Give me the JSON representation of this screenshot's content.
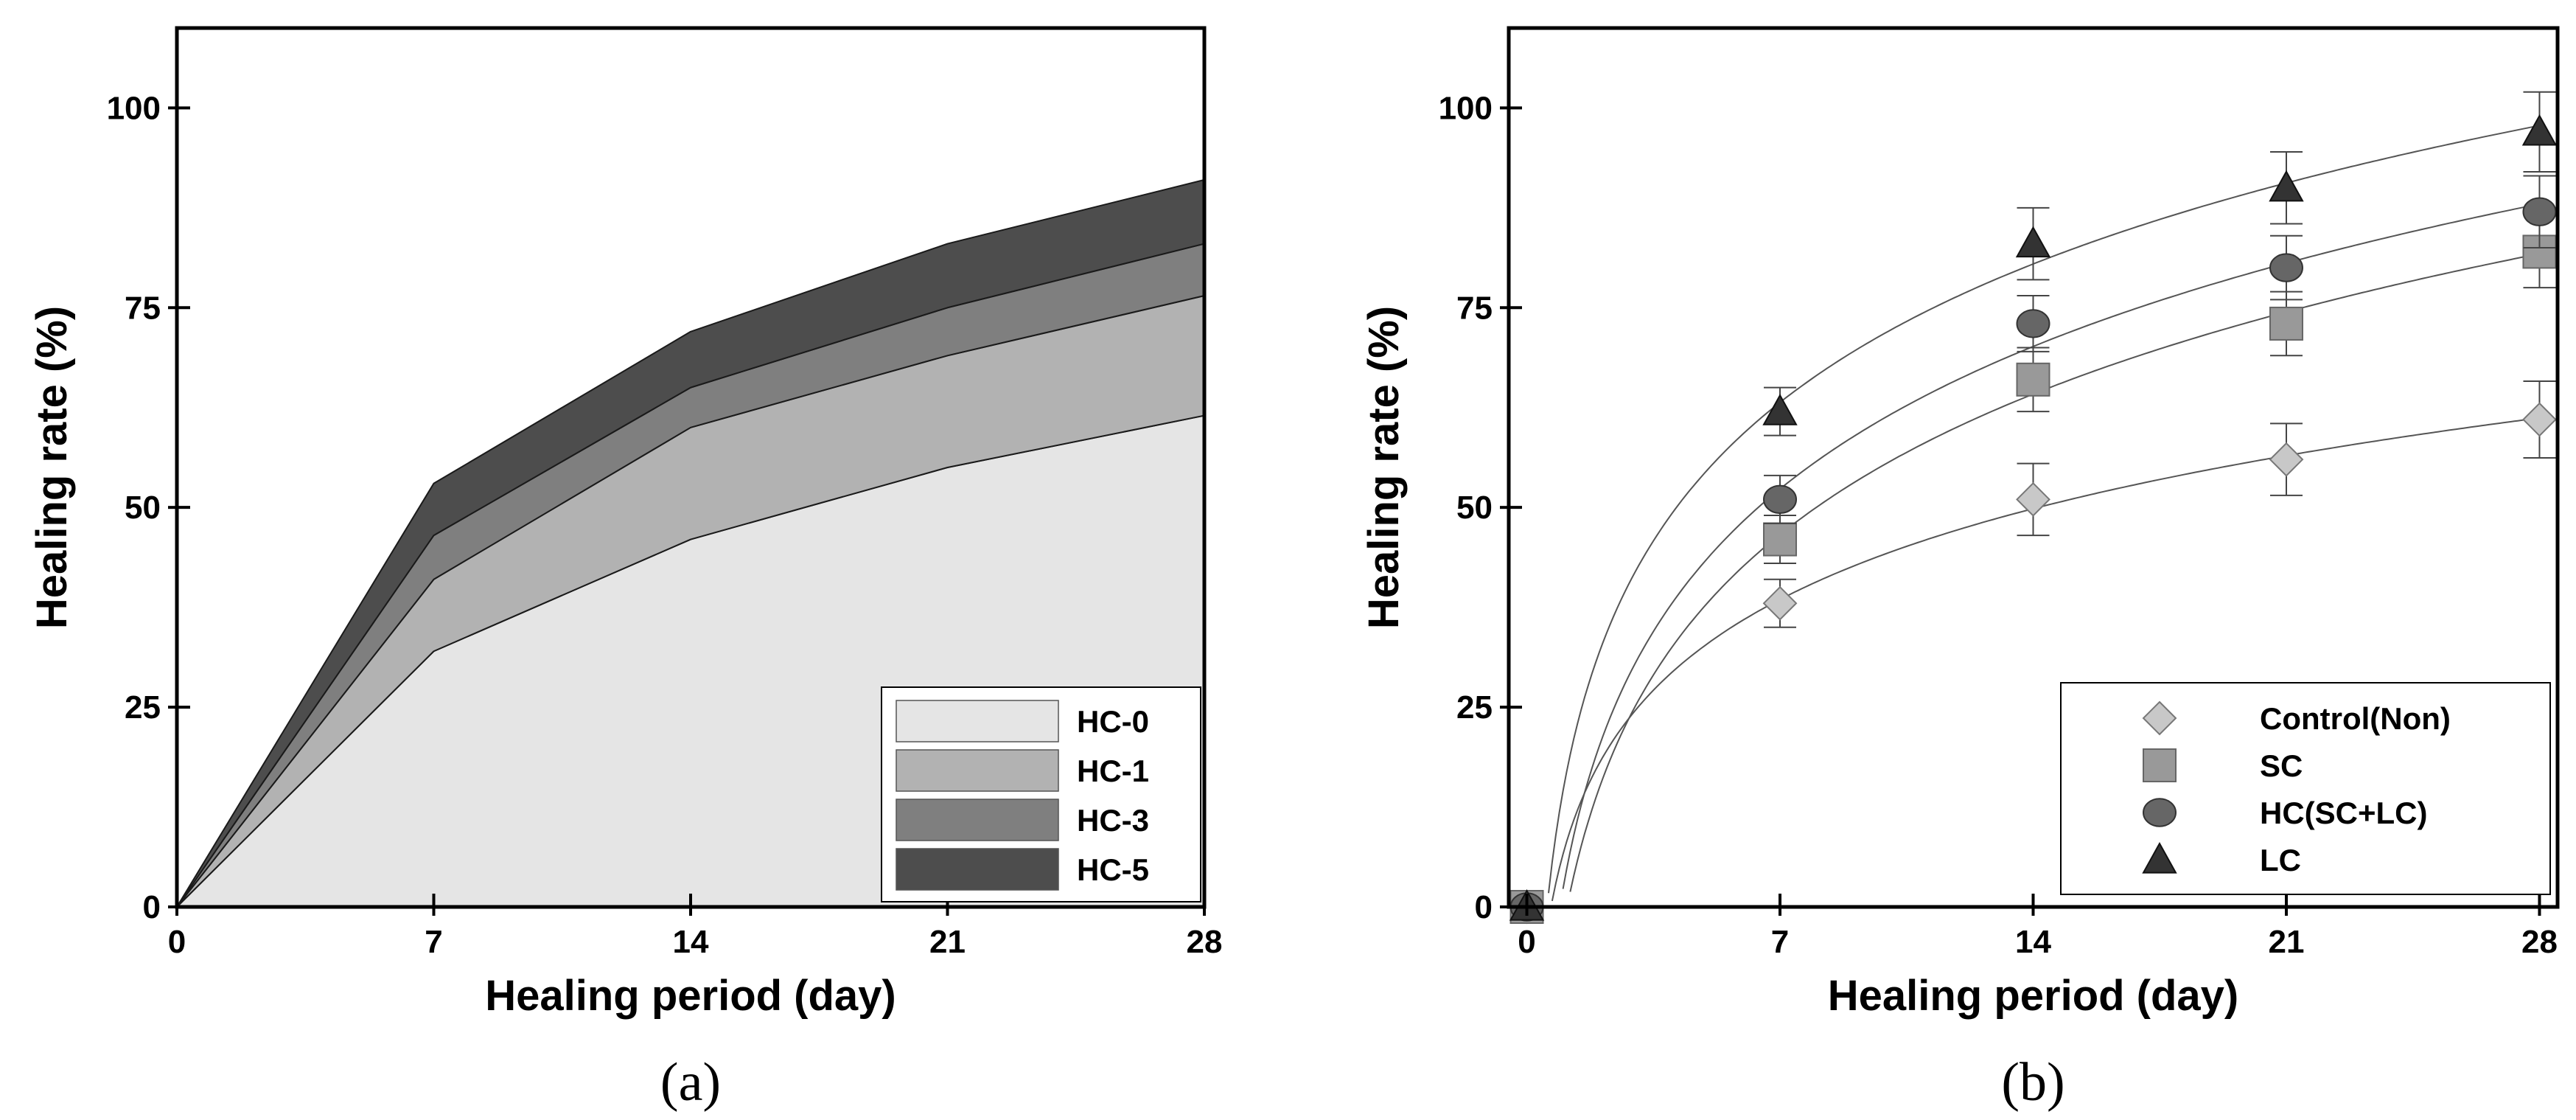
{
  "chart_data": [
    {
      "type": "area",
      "stacked": true,
      "panel_label": "(a)",
      "title": "",
      "xlabel": "Healing period (day)",
      "ylabel": "Healing rate (%)",
      "xlim": [
        0,
        28
      ],
      "ylim": [
        0,
        110
      ],
      "xticks": [
        0,
        7,
        14,
        21,
        28
      ],
      "yticks": [
        0,
        25,
        50,
        75,
        100
      ],
      "x": [
        0,
        7,
        14,
        21,
        28
      ],
      "series": [
        {
          "name": "HC-0",
          "color": "#e5e5e5",
          "values": [
            0,
            32,
            46,
            55,
            61.5
          ]
        },
        {
          "name": "HC-1",
          "color": "#b2b2b2",
          "values": [
            0,
            9,
            14,
            14,
            15
          ]
        },
        {
          "name": "HC-3",
          "color": "#7f7f7f",
          "values": [
            0,
            5.5,
            5,
            6,
            6.5
          ]
        },
        {
          "name": "HC-5",
          "color": "#4d4d4d",
          "values": [
            0,
            6.5,
            7,
            8,
            8
          ]
        }
      ],
      "legend_position": "bottom-right",
      "grid": false
    },
    {
      "type": "scatter",
      "panel_label": "(b)",
      "title": "",
      "xlabel": "Healing period (day)",
      "ylabel": "Healing rate (%)",
      "xlim": [
        -0.5,
        28.5
      ],
      "ylim": [
        0,
        110
      ],
      "xticks": [
        0,
        7,
        14,
        21,
        28
      ],
      "yticks": [
        0,
        25,
        50,
        75,
        100
      ],
      "series": [
        {
          "name": "Control(Non)",
          "marker": "diamond",
          "color": "#c8c8c8",
          "x": [
            0,
            7,
            14,
            21,
            28
          ],
          "y": [
            0,
            38,
            51,
            56,
            61
          ],
          "err": [
            0,
            3,
            4.5,
            4.5,
            4.8
          ]
        },
        {
          "name": "SC",
          "marker": "square",
          "color": "#999999",
          "x": [
            0,
            7,
            14,
            21,
            28
          ],
          "y": [
            0,
            46,
            66,
            73,
            82
          ],
          "err": [
            0,
            3,
            4,
            4,
            4.5
          ]
        },
        {
          "name": "HC(SC+LC)",
          "marker": "circle",
          "color": "#666666",
          "x": [
            0,
            7,
            14,
            21,
            28
          ],
          "y": [
            0,
            51,
            73,
            80,
            87
          ],
          "err": [
            0,
            3,
            3.5,
            4,
            4.5
          ]
        },
        {
          "name": "LC",
          "marker": "triangle",
          "color": "#333333",
          "x": [
            0,
            7,
            14,
            21,
            28
          ],
          "y": [
            0,
            62,
            83,
            90,
            97
          ],
          "err": [
            0,
            3,
            4.5,
            4.5,
            5
          ]
        }
      ],
      "legend_position": "bottom-right",
      "grid": false
    }
  ]
}
